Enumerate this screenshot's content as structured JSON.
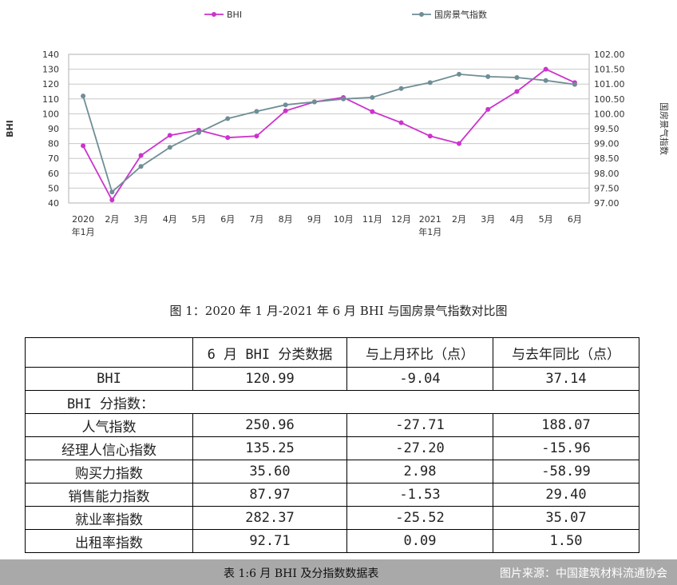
{
  "chart_data": {
    "type": "line",
    "categories": [
      "2020年1月",
      "2月",
      "3月",
      "4月",
      "5月",
      "6月",
      "7月",
      "8月",
      "9月",
      "10月",
      "11月",
      "12月",
      "2021年1月",
      "2月",
      "3月",
      "4月",
      "5月",
      "6月"
    ],
    "x_tick_labels": [
      [
        "2020",
        "年1月"
      ],
      [
        "2月"
      ],
      [
        "3月"
      ],
      [
        "4月"
      ],
      [
        "5月"
      ],
      [
        "6月"
      ],
      [
        "7月"
      ],
      [
        "8月"
      ],
      [
        "9月"
      ],
      [
        "10月"
      ],
      [
        "11月"
      ],
      [
        "12月"
      ],
      [
        "2021",
        "年1月"
      ],
      [
        "2月"
      ],
      [
        "3月"
      ],
      [
        "4月"
      ],
      [
        "5月"
      ],
      [
        "6月"
      ]
    ],
    "series": [
      {
        "name": "BHI",
        "axis": "left",
        "color": "#cc33cc",
        "values": [
          78.5,
          42,
          72,
          85.5,
          89,
          84,
          85,
          102,
          108,
          111,
          101.5,
          94,
          85,
          80,
          103,
          115,
          130,
          121
        ]
      },
      {
        "name": "国房景气指数",
        "axis": "right",
        "color": "#6f8e96",
        "values": [
          100.6,
          97.37,
          98.23,
          98.87,
          99.37,
          99.84,
          100.08,
          100.3,
          100.4,
          100.5,
          100.55,
          100.85,
          101.05,
          101.33,
          101.25,
          101.22,
          101.12,
          100.99
        ]
      }
    ],
    "ylabel": "BHI",
    "y2label": "国房景气指数",
    "ylim": [
      40,
      140
    ],
    "y2lim": [
      97,
      102
    ],
    "yticks": [
      "40",
      "50",
      "60",
      "70",
      "80",
      "90",
      "100",
      "110",
      "120",
      "130",
      "140"
    ],
    "y2ticks": [
      "97.00",
      "97.50",
      "98.00",
      "98.50",
      "99.00",
      "99.50",
      "100.00",
      "100.50",
      "101.00",
      "101.50",
      "102.00"
    ],
    "grid": true,
    "legend": "top"
  },
  "figure_caption": "图 1：2020 年 1 月-2021 年 6 月 BHI 与国房景气指数对比图",
  "table": {
    "headers": [
      "",
      "6 月 BHI 分类数据",
      "与上月环比（点）",
      "与去年同比（点）"
    ],
    "rows": [
      [
        "BHI",
        "120.99",
        "-9.04",
        "37.14"
      ],
      [
        "BHI 分指数：",
        "",
        "",
        ""
      ],
      [
        "人气指数",
        "250.96",
        "-27.71",
        "188.07"
      ],
      [
        "经理人信心指数",
        "135.25",
        "-27.20",
        "-15.96"
      ],
      [
        "购买力指数",
        "35.60",
        "2.98",
        "-58.99"
      ],
      [
        "销售能力指数",
        "87.97",
        "-1.53",
        "29.40"
      ],
      [
        "就业率指数",
        "282.37",
        "-25.52",
        "35.07"
      ],
      [
        "出租率指数",
        "92.71",
        "0.09",
        "1.50"
      ]
    ]
  },
  "table_caption": "表 1:6 月 BHI 及分指数数据表",
  "watermark": "图片来源：中国建筑材料流通协会"
}
